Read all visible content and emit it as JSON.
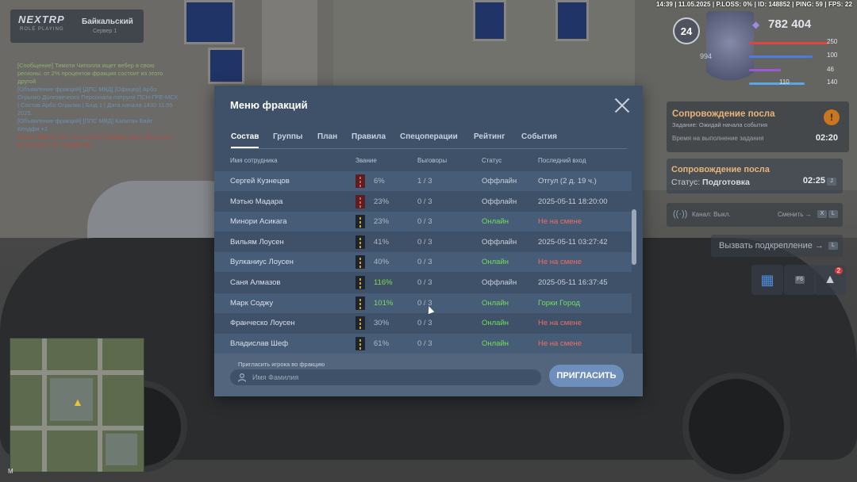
{
  "hud": {
    "status_line": "14:39 | 11.05.2025 | P.LOSS: 0% | ID: 148852 | PING: 59 | FPS: 22",
    "logo": "NEXTRP",
    "logo_sub": "ROLE PLAYING",
    "server_name": "Байкальский",
    "server_sub": "Сервер 1",
    "level": "24",
    "money": "782 404",
    "ammo": "994",
    "stats": [
      "250",
      "100",
      "46",
      "110",
      "140"
    ],
    "colors": {
      "health": "#e0463e",
      "armor": "#4f7be0",
      "hunger": "#9a5ad8",
      "thirst": "#58a7e8"
    }
  },
  "chat": [
    {
      "text": "[Сообщение] Тимоти Чиполла ищет вебер в свою",
      "color": "green"
    },
    {
      "text": "регионы. от 2% процентов фракция состоит из этого",
      "color": "green"
    },
    {
      "text": "другой",
      "color": "green"
    },
    {
      "text": "[Объявление фракций] [ДПС МВД] [Офицер] Арбо",
      "color": "blue"
    },
    {
      "text": "Огрызко Долговечного Персонала патруля ПСН-ГРЕ-МСХ",
      "color": "blue"
    },
    {
      "text": "| Состав Арбо Огрызко | Бюд 1 | Дата начала 1430 11.05",
      "color": "blue"
    },
    {
      "text": "2025.",
      "color": "blue"
    },
    {
      "text": "[Объявление фракций] [ППС МВД] Капитан Вайт",
      "color": "blue"
    },
    {
      "text": "Кендфи +1",
      "color": "blue"
    },
    {
      "text": "Егорка Картье был заключен в порядке выше Весенний",
      "color": "red"
    },
    {
      "text": "по причине: ПГ, стадия №1",
      "color": "red"
    }
  ],
  "tasks": {
    "escort_title": "Сопровождение посла",
    "escort_sub": "Задание: Ожидай начала события",
    "escort_row": "Время на выполнение задания",
    "escort_time": "02:20",
    "escort_badge": "!",
    "panel2_title": "Сопровождение посла",
    "panel2_status_label": "Статус:",
    "panel2_status": "Подготовка",
    "panel2_time": "02:25",
    "panel2_key": "J"
  },
  "radio": {
    "channel_label": "Канал: Выкл.",
    "switch_label": "Сменить →",
    "key1": "X",
    "key2": "L"
  },
  "support_button": "Вызвать подкрепление →",
  "support_key": "L",
  "quick": {
    "calendar": "▦",
    "phone_key": "F6",
    "bell": "🔔",
    "bell_count": "2"
  },
  "minimap_key": "M",
  "dialog": {
    "title": "Меню фракций",
    "tabs": [
      {
        "label": "Состав",
        "active": true
      },
      {
        "label": "Группы"
      },
      {
        "label": "План"
      },
      {
        "label": "Правила"
      },
      {
        "label": "Спецоперации"
      },
      {
        "label": "Рейтинг"
      },
      {
        "label": "События"
      }
    ],
    "columns": {
      "name": "Имя сотрудника",
      "rank": "Звание",
      "reprimands": "Выговоры",
      "status": "Статус",
      "last_login": "Последний вход"
    },
    "rows": [
      {
        "name": "Сергей Кузнецов",
        "rank_style": "red",
        "pct": "6%",
        "pct_color": "grey",
        "reprimands": "1 / 3",
        "status": "Оффлайн",
        "status_color": "offline",
        "last": "Отгул (2 д. 19 ч.)",
        "last_color": "grey"
      },
      {
        "name": "Мэтью Мадара",
        "rank_style": "red",
        "pct": "23%",
        "pct_color": "grey",
        "reprimands": "0 / 3",
        "status": "Оффлайн",
        "status_color": "offline",
        "last": "2025-05-11 18:20:00",
        "last_color": "grey"
      },
      {
        "name": "Минори Асикага",
        "rank_style": "dark",
        "pct": "23%",
        "pct_color": "grey",
        "reprimands": "0 / 3",
        "status": "Онлайн",
        "status_color": "online",
        "last": "Не на смене",
        "last_color": "red"
      },
      {
        "name": "Вильям Лоусен",
        "rank_style": "dark",
        "pct": "41%",
        "pct_color": "grey",
        "reprimands": "0 / 3",
        "status": "Оффлайн",
        "status_color": "offline",
        "last": "2025-05-11 03:27:42",
        "last_color": "grey"
      },
      {
        "name": "Вулканиус Лоусен",
        "rank_style": "dark",
        "pct": "40%",
        "pct_color": "grey",
        "reprimands": "0 / 3",
        "status": "Онлайн",
        "status_color": "online",
        "last": "Не на смене",
        "last_color": "red"
      },
      {
        "name": "Саня Алмазов",
        "rank_style": "dark",
        "pct": "116%",
        "pct_color": "green",
        "reprimands": "0 / 3",
        "status": "Оффлайн",
        "status_color": "offline",
        "last": "2025-05-11 16:37:45",
        "last_color": "grey"
      },
      {
        "name": "Марк Соджу",
        "rank_style": "dark",
        "pct": "101%",
        "pct_color": "green",
        "reprimands": "0 / 3",
        "status": "Онлайн",
        "status_color": "online",
        "last": "Горки Город",
        "last_color": "green"
      },
      {
        "name": "Франческо Лоусен",
        "rank_style": "dark",
        "pct": "30%",
        "pct_color": "grey",
        "reprimands": "0 / 3",
        "status": "Онлайн",
        "status_color": "online",
        "last": "Не на смене",
        "last_color": "red"
      },
      {
        "name": "Владислав Шеф",
        "rank_style": "dark",
        "pct": "61%",
        "pct_color": "grey",
        "reprimands": "0 / 3",
        "status": "Онлайн",
        "status_color": "online",
        "last": "Не на смене",
        "last_color": "red"
      }
    ],
    "invite_label": "Пригласить игрока во фракцию",
    "invite_placeholder": "Имя Фамилия",
    "invite_button": "ПРИГЛАСИТЬ"
  }
}
